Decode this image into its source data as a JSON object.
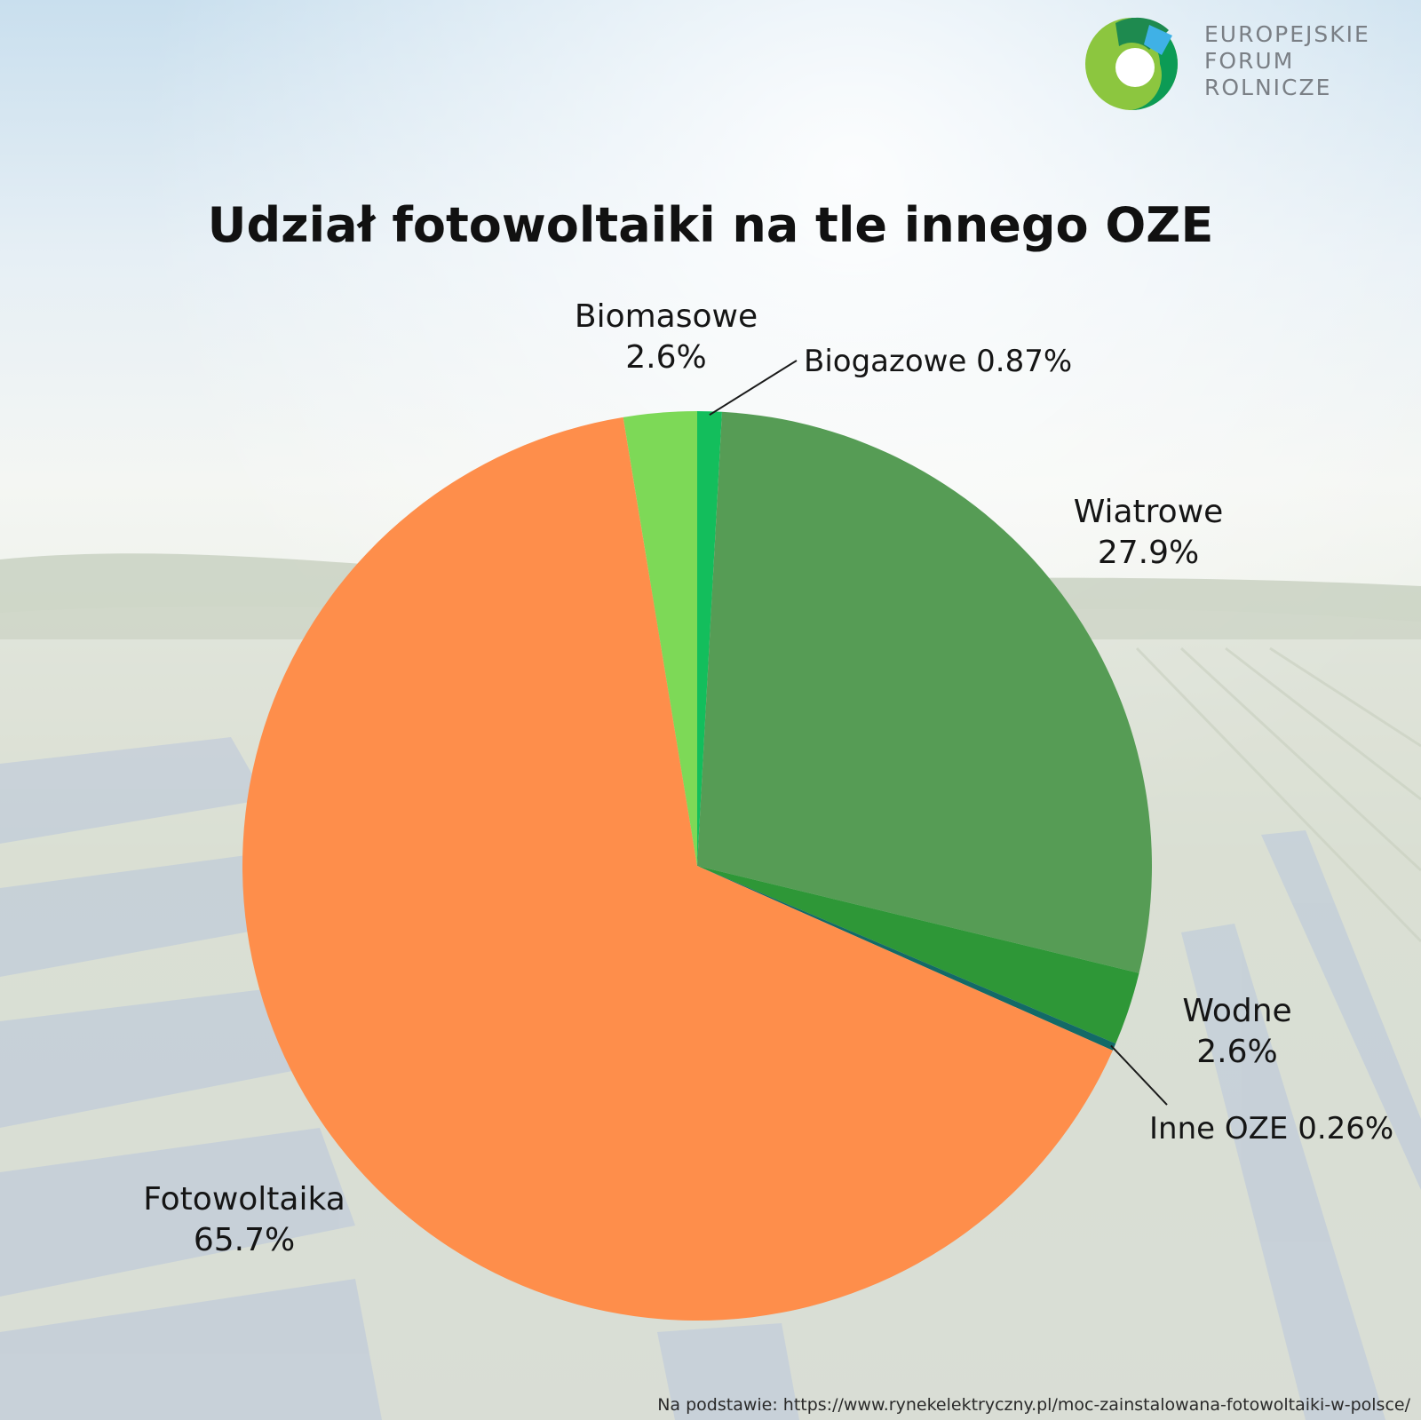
{
  "logo": {
    "lines": [
      "EUROPEJSKIE",
      "FORUM",
      "ROLNICZE"
    ]
  },
  "chart_data": {
    "type": "pie",
    "title": "Udział fotowoltaiki na tle innego OZE",
    "start": "12 o'clock",
    "direction": "clockwise",
    "slices": [
      {
        "name": "Biogazowe",
        "value": 0.87,
        "label": "0.87%",
        "color": "#13be5c"
      },
      {
        "name": "Wiatrowe",
        "value": 27.9,
        "label": "27.9%",
        "color": "#569c55"
      },
      {
        "name": "Wodne",
        "value": 2.6,
        "label": "2.6%",
        "color": "#2e9737"
      },
      {
        "name": "Inne OZE",
        "value": 0.26,
        "label": "0.26%",
        "color": "#136a67"
      },
      {
        "name": "Fotowoltaika",
        "value": 65.7,
        "label": "65.7%",
        "color": "#fe8e4b"
      },
      {
        "name": "Biomasowe",
        "value": 2.6,
        "label": "2.6%",
        "color": "#7dd957"
      }
    ]
  },
  "source": "Na podstawie: https://www.rynekelektryczny.pl/moc-zainstalowana-fotowoltaiki-w-polsce/"
}
